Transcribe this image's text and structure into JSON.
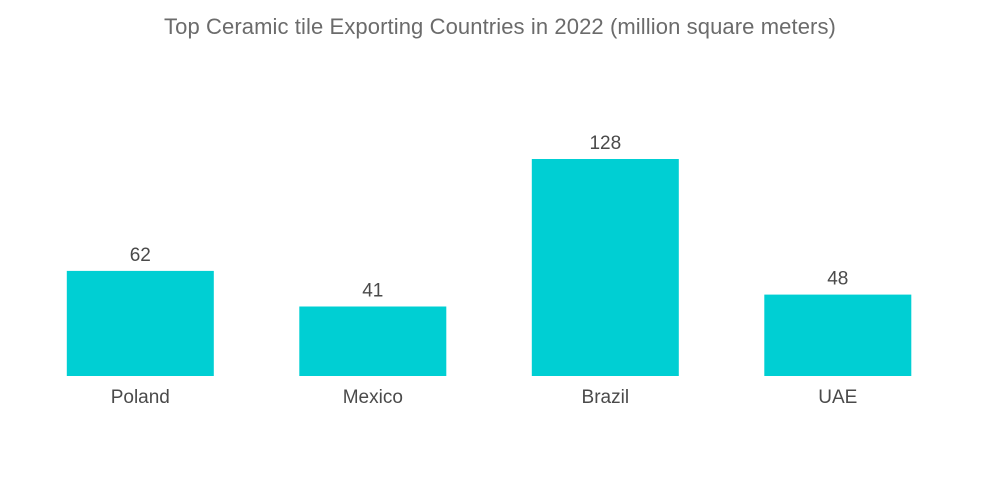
{
  "chart_data": {
    "type": "bar",
    "title": "Top Ceramic tile Exporting Countries in 2022 (million square meters)",
    "categories": [
      "Poland",
      "Mexico",
      "Brazil",
      "UAE"
    ],
    "values": [
      62,
      41,
      128,
      48
    ],
    "xlabel": "",
    "ylabel": "",
    "ylim": [
      0,
      128
    ],
    "grid": false,
    "legend": "none",
    "bar_color": "#00cfd3"
  }
}
